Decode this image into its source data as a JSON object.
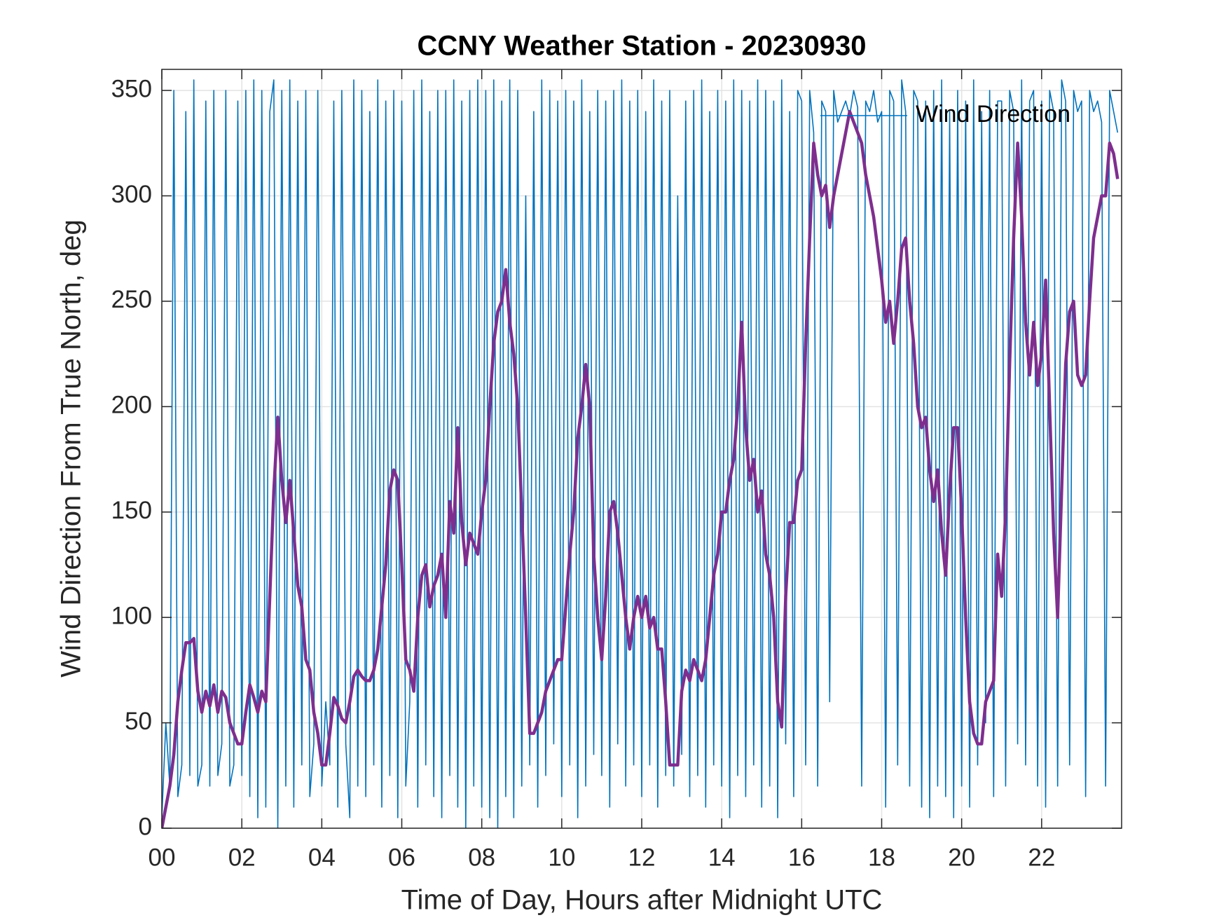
{
  "chart_data": {
    "type": "line",
    "title": "CCNY Weather Station - 20230930",
    "xlabel": "Time of Day, Hours after Midnight UTC",
    "ylabel": "Wind Direction From True North, deg",
    "xlim": [
      0,
      24
    ],
    "ylim": [
      0,
      360
    ],
    "xticks": [
      {
        "value": 0,
        "label": "00"
      },
      {
        "value": 2,
        "label": "02"
      },
      {
        "value": 4,
        "label": "04"
      },
      {
        "value": 6,
        "label": "06"
      },
      {
        "value": 8,
        "label": "08"
      },
      {
        "value": 10,
        "label": "10"
      },
      {
        "value": 12,
        "label": "12"
      },
      {
        "value": 14,
        "label": "14"
      },
      {
        "value": 16,
        "label": "16"
      },
      {
        "value": 18,
        "label": "18"
      },
      {
        "value": 20,
        "label": "20"
      },
      {
        "value": 22,
        "label": "22"
      }
    ],
    "yticks": [
      0,
      50,
      100,
      150,
      200,
      250,
      300,
      350
    ],
    "grid": true,
    "legend": "upper right",
    "x": [
      0,
      0.1,
      0.2,
      0.3,
      0.4,
      0.5,
      0.6,
      0.7,
      0.8,
      0.9,
      1,
      1.1,
      1.2,
      1.3,
      1.4,
      1.5,
      1.6,
      1.7,
      1.8,
      1.9,
      2,
      2.1,
      2.2,
      2.3,
      2.4,
      2.5,
      2.6,
      2.7,
      2.8,
      2.9,
      3,
      3.1,
      3.2,
      3.3,
      3.4,
      3.5,
      3.6,
      3.7,
      3.8,
      3.9,
      4,
      4.1,
      4.2,
      4.3,
      4.4,
      4.5,
      4.6,
      4.7,
      4.8,
      4.9,
      5,
      5.1,
      5.2,
      5.3,
      5.4,
      5.5,
      5.6,
      5.7,
      5.8,
      5.9,
      6,
      6.1,
      6.2,
      6.3,
      6.4,
      6.5,
      6.6,
      6.7,
      6.8,
      6.9,
      7,
      7.1,
      7.2,
      7.3,
      7.4,
      7.5,
      7.6,
      7.7,
      7.8,
      7.9,
      8,
      8.1,
      8.2,
      8.3,
      8.4,
      8.5,
      8.6,
      8.7,
      8.8,
      8.9,
      9,
      9.1,
      9.2,
      9.3,
      9.4,
      9.5,
      9.6,
      9.7,
      9.8,
      9.9,
      10,
      10.1,
      10.2,
      10.3,
      10.4,
      10.5,
      10.6,
      10.7,
      10.8,
      10.9,
      11,
      11.1,
      11.2,
      11.3,
      11.4,
      11.5,
      11.6,
      11.7,
      11.8,
      11.9,
      12,
      12.1,
      12.2,
      12.3,
      12.4,
      12.5,
      12.6,
      12.7,
      12.8,
      12.9,
      13,
      13.1,
      13.2,
      13.3,
      13.4,
      13.5,
      13.6,
      13.7,
      13.8,
      13.9,
      14,
      14.1,
      14.2,
      14.3,
      14.4,
      14.5,
      14.6,
      14.7,
      14.8,
      14.9,
      15,
      15.1,
      15.2,
      15.3,
      15.4,
      15.5,
      15.6,
      15.7,
      15.8,
      15.9,
      16,
      16.1,
      16.2,
      16.3,
      16.4,
      16.5,
      16.6,
      16.7,
      16.8,
      16.9,
      17,
      17.1,
      17.2,
      17.3,
      17.4,
      17.5,
      17.6,
      17.7,
      17.8,
      17.9,
      18,
      18.1,
      18.2,
      18.3,
      18.4,
      18.5,
      18.6,
      18.7,
      18.8,
      18.9,
      19,
      19.1,
      19.2,
      19.3,
      19.4,
      19.5,
      19.6,
      19.7,
      19.8,
      19.9,
      20,
      20.1,
      20.2,
      20.3,
      20.4,
      20.5,
      20.6,
      20.7,
      20.8,
      20.9,
      21,
      21.1,
      21.2,
      21.3,
      21.4,
      21.5,
      21.6,
      21.7,
      21.8,
      21.9,
      22,
      22.1,
      22.2,
      22.3,
      22.4,
      22.5,
      22.6,
      22.7,
      22.8,
      22.9,
      23,
      23.1,
      23.2,
      23.3,
      23.4,
      23.5,
      23.6,
      23.7,
      23.8,
      23.9
    ],
    "series": [
      {
        "name": "Wind Direction",
        "color": "#0072bd",
        "values": [
          5,
          50,
          20,
          350,
          15,
          30,
          340,
          25,
          355,
          20,
          30,
          345,
          20,
          350,
          25,
          40,
          350,
          20,
          30,
          345,
          25,
          350,
          15,
          355,
          5,
          350,
          10,
          340,
          355,
          0,
          350,
          20,
          355,
          10,
          345,
          30,
          350,
          15,
          40,
          350,
          20,
          60,
          30,
          345,
          10,
          350,
          40,
          5,
          355,
          20,
          350,
          15,
          340,
          30,
          355,
          10,
          345,
          25,
          350,
          5,
          345,
          20,
          60,
          350,
          10,
          355,
          30,
          340,
          15,
          350,
          5,
          350,
          25,
          355,
          10,
          345,
          0,
          350,
          20,
          355,
          10,
          350,
          5,
          355,
          0,
          345,
          15,
          355,
          5,
          350,
          20,
          300,
          30,
          340,
          10,
          355,
          25,
          350,
          40,
          345,
          15,
          350,
          30,
          345,
          5,
          355,
          20,
          340,
          35,
          350,
          25,
          345,
          10,
          350,
          40,
          355,
          20,
          345,
          30,
          350,
          15,
          340,
          30,
          355,
          10,
          345,
          25,
          350,
          20,
          300,
          35,
          345,
          15,
          350,
          25,
          355,
          10,
          340,
          30,
          350,
          20,
          345,
          5,
          355,
          25,
          350,
          15,
          345,
          30,
          355,
          10,
          350,
          20,
          345,
          5,
          355,
          40,
          340,
          15,
          350,
          345,
          30,
          350,
          330,
          20,
          345,
          340,
          60,
          350,
          335,
          340,
          345,
          338,
          350,
          342,
          20,
          345,
          340,
          350,
          335,
          340,
          10,
          350,
          345,
          30,
          355,
          340,
          20,
          350,
          345,
          10,
          345,
          5,
          350,
          20,
          355,
          15,
          340,
          5,
          350,
          20,
          345,
          10,
          355,
          30,
          340,
          50,
          350,
          15,
          345,
          345,
          20,
          350,
          340,
          40,
          355,
          30,
          345,
          350,
          20,
          345,
          10,
          350,
          340,
          20,
          355,
          345,
          30,
          350,
          340,
          345,
          15,
          350,
          340,
          345,
          335,
          20,
          350,
          340,
          330
        ]
      },
      {
        "color": "#7e2f8e",
        "values": [
          0,
          10,
          20,
          35,
          60,
          75,
          88,
          88,
          90,
          65,
          55,
          65,
          58,
          68,
          55,
          65,
          62,
          50,
          45,
          40,
          40,
          55,
          68,
          62,
          55,
          65,
          60,
          110,
          160,
          195,
          165,
          145,
          165,
          140,
          115,
          105,
          80,
          75,
          55,
          45,
          30,
          30,
          45,
          62,
          58,
          52,
          50,
          60,
          72,
          75,
          72,
          70,
          70,
          75,
          85,
          105,
          125,
          160,
          170,
          165,
          125,
          80,
          75,
          65,
          100,
          120,
          125,
          105,
          115,
          120,
          130,
          100,
          155,
          140,
          190,
          145,
          125,
          140,
          135,
          130,
          150,
          165,
          200,
          230,
          245,
          250,
          265,
          240,
          225,
          200,
          150,
          100,
          45,
          45,
          50,
          55,
          65,
          70,
          75,
          80,
          80,
          105,
          130,
          150,
          185,
          200,
          220,
          200,
          130,
          100,
          80,
          110,
          150,
          155,
          140,
          120,
          100,
          85,
          100,
          110,
          100,
          110,
          95,
          100,
          85,
          85,
          60,
          30,
          30,
          30,
          65,
          75,
          70,
          80,
          75,
          70,
          80,
          100,
          120,
          130,
          150,
          150,
          165,
          175,
          200,
          240,
          190,
          165,
          175,
          150,
          160,
          130,
          120,
          100,
          60,
          48,
          110,
          145,
          145,
          165,
          170,
          230,
          280,
          325,
          310,
          300,
          305,
          285,
          300,
          310,
          320,
          330,
          340,
          335,
          330,
          325,
          310,
          300,
          290,
          275,
          260,
          240,
          250,
          230,
          250,
          275,
          280,
          250,
          230,
          200,
          190,
          195,
          170,
          155,
          170,
          140,
          120,
          160,
          190,
          190,
          150,
          100,
          60,
          45,
          40,
          40,
          60,
          65,
          70,
          130,
          110,
          150,
          220,
          280,
          325,
          290,
          240,
          215,
          240,
          210,
          225,
          260,
          200,
          140,
          100,
          160,
          220,
          245,
          250,
          215,
          210,
          215,
          250,
          280,
          290,
          300,
          300,
          325,
          320,
          308
        ]
      }
    ]
  }
}
